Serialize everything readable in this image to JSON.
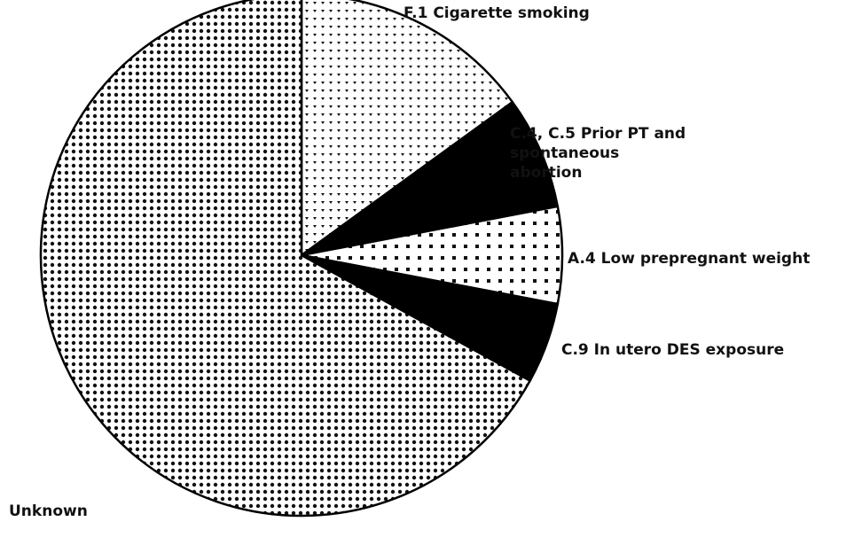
{
  "chart_data": {
    "type": "pie",
    "categories": [
      "F.1 Cigarette smoking",
      "C.4, C.5 Prior PT and spontaneous abortion",
      "A.4 Low prepregnant weight",
      "C.9 In utero DES exposure",
      "Unknown"
    ],
    "values": [
      15,
      7,
      6,
      5,
      67
    ],
    "colors": [
      "#000000",
      "#000000",
      "#000000",
      "#000000",
      "#000000"
    ]
  }
}
